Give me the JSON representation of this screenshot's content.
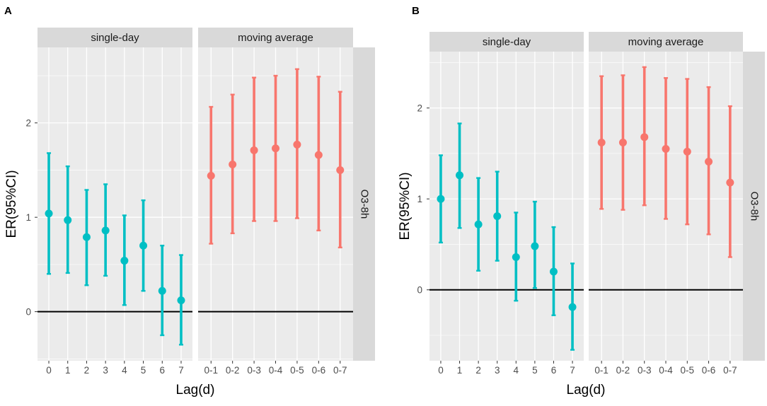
{
  "figure": {
    "facet_row_label": "O3-8h",
    "colors": {
      "single_day": "#00BFC4",
      "moving_average": "#F8766D",
      "panel_bg": "#EBEBEB",
      "strip_bg": "#D9D9D9",
      "grid": "#FFFFFF",
      "zero_line": "#000000"
    }
  },
  "chart_data": [
    {
      "panel": "A",
      "type": "scatter",
      "subtype": "point-errorbar",
      "ylabel": "ER(95%CI)",
      "xlabel": "Lag(d)",
      "ylim": [
        -0.52,
        2.8
      ],
      "yticks": [
        0,
        1,
        2
      ],
      "hline": 0,
      "facets": [
        {
          "strip": "single-day",
          "color_key": "single_day",
          "categories": [
            "0",
            "1",
            "2",
            "3",
            "4",
            "5",
            "6",
            "7"
          ],
          "est": [
            1.04,
            0.97,
            0.79,
            0.86,
            0.54,
            0.7,
            0.22,
            0.12
          ],
          "lower": [
            0.4,
            0.41,
            0.28,
            0.38,
            0.07,
            0.22,
            -0.25,
            -0.35
          ],
          "upper": [
            1.68,
            1.54,
            1.29,
            1.35,
            1.02,
            1.18,
            0.7,
            0.6
          ]
        },
        {
          "strip": "moving average",
          "color_key": "moving_average",
          "categories": [
            "0-1",
            "0-2",
            "0-3",
            "0-4",
            "0-5",
            "0-6",
            "0-7"
          ],
          "est": [
            1.44,
            1.56,
            1.71,
            1.73,
            1.77,
            1.66,
            1.5
          ],
          "lower": [
            0.72,
            0.83,
            0.96,
            0.96,
            0.99,
            0.86,
            0.68
          ],
          "upper": [
            2.17,
            2.3,
            2.48,
            2.5,
            2.57,
            2.49,
            2.33
          ]
        }
      ]
    },
    {
      "panel": "B",
      "type": "scatter",
      "subtype": "point-errorbar",
      "ylabel": "ER(95%CI)",
      "xlabel": "Lag(d)",
      "ylim": [
        -0.78,
        2.62
      ],
      "yticks": [
        0,
        1,
        2
      ],
      "hline": 0,
      "facets": [
        {
          "strip": "single-day",
          "color_key": "single_day",
          "categories": [
            "0",
            "1",
            "2",
            "3",
            "4",
            "5",
            "6",
            "7"
          ],
          "est": [
            1.0,
            1.26,
            0.72,
            0.81,
            0.36,
            0.48,
            0.2,
            -0.19
          ],
          "lower": [
            0.52,
            0.68,
            0.21,
            0.32,
            -0.12,
            0.02,
            -0.28,
            -0.66
          ],
          "upper": [
            1.48,
            1.83,
            1.23,
            1.3,
            0.85,
            0.97,
            0.69,
            0.29
          ]
        },
        {
          "strip": "moving average",
          "color_key": "moving_average",
          "categories": [
            "0-1",
            "0-2",
            "0-3",
            "0-4",
            "0-5",
            "0-6",
            "0-7"
          ],
          "est": [
            1.62,
            1.62,
            1.68,
            1.55,
            1.52,
            1.41,
            1.18
          ],
          "lower": [
            0.89,
            0.88,
            0.93,
            0.78,
            0.72,
            0.61,
            0.36
          ],
          "upper": [
            2.35,
            2.36,
            2.45,
            2.33,
            2.32,
            2.23,
            2.02
          ]
        }
      ]
    }
  ]
}
